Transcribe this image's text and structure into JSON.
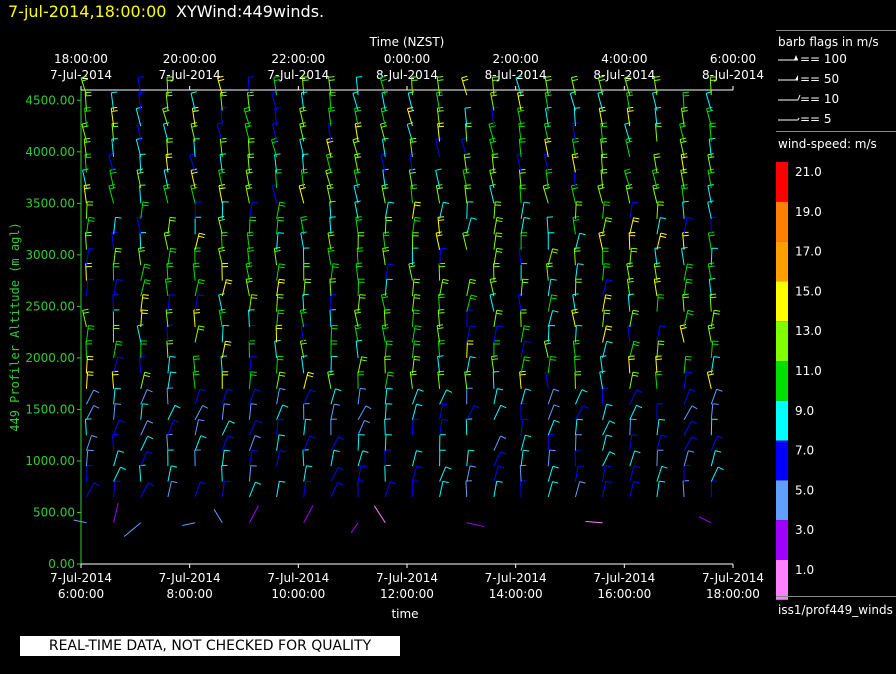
{
  "header": {
    "date_time": "7-jul-2014,18:00:00",
    "product": "XYWind:449winds."
  },
  "footer": {
    "qc_notice": "REAL-TIME DATA, NOT CHECKED FOR QUALITY"
  },
  "station_id": "iss1/prof449_winds",
  "barb_legend": {
    "title": "barb flags in m/s",
    "items": [
      "== 100",
      "== 50",
      "== 10",
      "== 5"
    ]
  },
  "speed_legend": {
    "title": "wind-speed: m/s",
    "bins": [
      {
        "label": "21.0",
        "color": "#ff0000"
      },
      {
        "label": "19.0",
        "color": "#ff8000"
      },
      {
        "label": "17.0",
        "color": "#ffa000"
      },
      {
        "label": "15.0",
        "color": "#ffff00"
      },
      {
        "label": "13.0",
        "color": "#80ff00"
      },
      {
        "label": "11.0",
        "color": "#00e000"
      },
      {
        "label": "9.0",
        "color": "#00ffff"
      },
      {
        "label": "7.0",
        "color": "#0000ff"
      },
      {
        "label": "5.0",
        "color": "#5f9fff"
      },
      {
        "label": "3.0",
        "color": "#a000ff"
      },
      {
        "label": "1.0",
        "color": "#ff80ff"
      }
    ]
  },
  "chart_data": {
    "type": "scatter",
    "title": "",
    "xlabel": "time",
    "ylabel": "449 Profiler Altitude (m agl)",
    "top_axis_label": "Time (NZST)",
    "xlim_hours": [
      6,
      18
    ],
    "ylim": [
      0,
      4600
    ],
    "yticks": [
      "0.00",
      "500.00",
      "1000.00",
      "1500.00",
      "2000.00",
      "2500.00",
      "3000.00",
      "3500.00",
      "4000.00",
      "4500.00"
    ],
    "bottom_ticks": [
      {
        "date": "7-Jul-2014",
        "time": "6:00:00"
      },
      {
        "date": "7-Jul-2014",
        "time": "8:00:00"
      },
      {
        "date": "7-Jul-2014",
        "time": "10:00:00"
      },
      {
        "date": "7-Jul-2014",
        "time": "12:00:00"
      },
      {
        "date": "7-Jul-2014",
        "time": "14:00:00"
      },
      {
        "date": "7-Jul-2014",
        "time": "16:00:00"
      },
      {
        "date": "7-Jul-2014",
        "time": "18:00:00"
      }
    ],
    "top_ticks": [
      {
        "time": "18:00:00",
        "date": "7-Jul-2014"
      },
      {
        "time": "20:00:00",
        "date": "7-Jul-2014"
      },
      {
        "time": "22:00:00",
        "date": "7-Jul-2014"
      },
      {
        "time": "0:00:00",
        "date": "8-Jul-2014"
      },
      {
        "time": "2:00:00",
        "date": "8-Jul-2014"
      },
      {
        "time": "4:00:00",
        "date": "8-Jul-2014"
      },
      {
        "time": "6:00:00",
        "date": "8-Jul-2014"
      }
    ],
    "profile_times_hours": [
      6.1,
      6.6,
      7.1,
      7.6,
      8.1,
      8.6,
      9.1,
      9.6,
      10.1,
      10.6,
      11.1,
      11.6,
      12.1,
      12.6,
      13.1,
      13.6,
      14.1,
      14.6,
      15.1,
      15.6,
      16.1,
      16.6,
      17.1,
      17.6
    ],
    "barb_levels_m": [
      400,
      650,
      800,
      950,
      1100,
      1250,
      1400,
      1550,
      1700,
      1850,
      2000,
      2150,
      2300,
      2450,
      2600,
      2750,
      2900,
      3050,
      3200,
      3350,
      3500,
      3650,
      3800,
      3950,
      4100,
      4250,
      4400,
      4550
    ]
  }
}
